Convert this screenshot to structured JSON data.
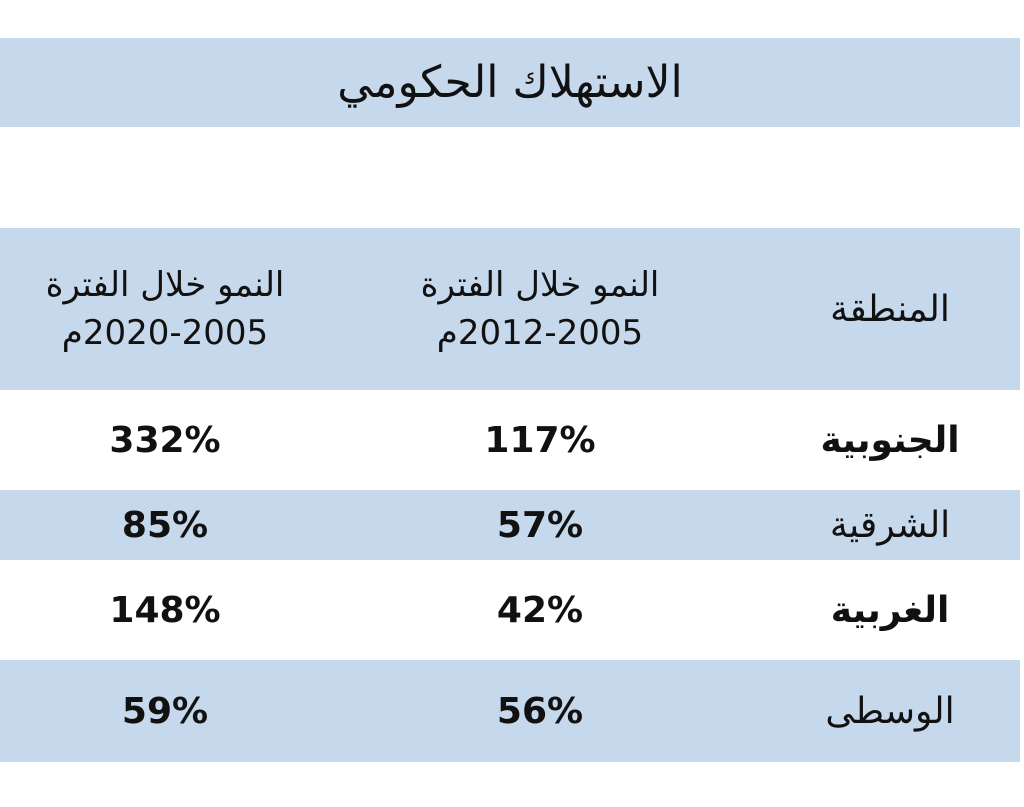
{
  "title": "الاستهلاك الحكومي",
  "table": {
    "header": [
      "المنطقة",
      "النمو خلال الفترة",
      "2012-2005م",
      "النمو خلال الفترة",
      "2020-2005م"
    ],
    "rows": [
      [
        "الجنوبية",
        "117%",
        "332%"
      ],
      [
        "الشرقية",
        "57%",
        "85%"
      ],
      [
        "الغربية",
        "42%",
        "148%"
      ],
      [
        "الوسطى",
        "56%",
        "59%"
      ]
    ]
  }
}
